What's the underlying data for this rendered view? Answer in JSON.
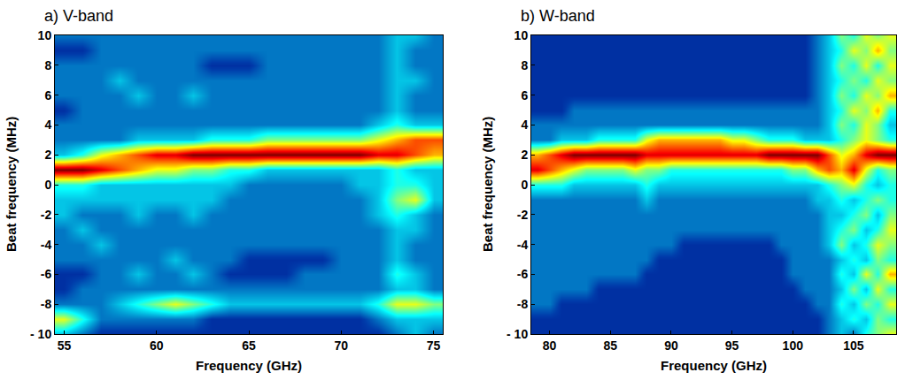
{
  "chart_data": [
    {
      "type": "heatmap",
      "title": "a) V-band",
      "x_label": "Frequency (GHz)",
      "y_label": "Beat frequency (MHz)",
      "grid": false,
      "xlim": [
        54.5,
        75.5
      ],
      "xticks": [
        55,
        60,
        65,
        70,
        75
      ],
      "ylim": [
        -10,
        10
      ],
      "yticks": [
        {
          "value": -10,
          "label": "- 10"
        },
        -8,
        -6,
        -4,
        -2,
        0,
        2,
        4,
        6,
        8,
        10
      ],
      "zlim": [
        0,
        10
      ],
      "x": [
        55,
        56,
        57,
        58,
        59,
        60,
        61,
        62,
        63,
        64,
        65,
        66,
        67,
        68,
        69,
        70,
        71,
        72,
        73,
        74,
        75
      ],
      "y": [
        -10,
        -9,
        -8,
        -7,
        -6,
        -5,
        -4,
        -3,
        -2,
        -1,
        0,
        1,
        2,
        3,
        4,
        5,
        6,
        7,
        8,
        9,
        10
      ],
      "cells": [
        [
          3,
          2,
          1,
          1,
          1,
          1,
          1,
          1,
          1,
          1,
          1,
          1,
          1,
          1,
          1,
          1,
          1,
          1,
          2,
          3,
          2
        ],
        [
          6,
          4,
          2,
          2,
          2,
          2,
          2,
          2,
          1,
          1,
          1,
          1,
          1,
          1,
          1,
          1,
          1,
          2,
          3,
          3,
          3
        ],
        [
          2,
          2,
          2,
          3,
          4,
          5,
          6,
          5,
          4,
          3,
          3,
          3,
          3,
          3,
          3,
          3,
          3,
          4,
          6,
          6,
          5
        ],
        [
          1,
          2,
          2,
          2,
          2,
          2,
          2,
          2,
          2,
          2,
          2,
          2,
          2,
          2,
          2,
          2,
          2,
          2,
          3,
          3,
          2
        ],
        [
          1,
          1,
          2,
          2,
          3,
          2,
          2,
          3,
          2,
          1,
          1,
          1,
          1,
          2,
          2,
          2,
          2,
          2,
          4,
          3,
          2
        ],
        [
          2,
          2,
          2,
          2,
          2,
          2,
          3,
          2,
          2,
          2,
          1,
          1,
          1,
          1,
          1,
          2,
          2,
          2,
          3,
          2,
          2
        ],
        [
          2,
          2,
          3,
          2,
          2,
          2,
          2,
          2,
          2,
          2,
          2,
          2,
          2,
          2,
          2,
          2,
          2,
          2,
          3,
          2,
          2
        ],
        [
          2,
          3,
          2,
          2,
          2,
          2,
          2,
          2,
          2,
          2,
          2,
          2,
          2,
          2,
          2,
          2,
          2,
          2,
          3,
          3,
          2
        ],
        [
          3,
          2,
          2,
          2,
          3,
          2,
          2,
          3,
          2,
          2,
          2,
          2,
          2,
          2,
          2,
          2,
          2,
          3,
          4,
          3,
          2
        ],
        [
          3,
          3,
          3,
          3,
          3,
          3,
          3,
          3,
          3,
          2,
          2,
          2,
          2,
          2,
          2,
          2,
          2,
          3,
          5,
          6,
          3
        ],
        [
          4,
          4,
          3,
          3,
          3,
          3,
          3,
          3,
          3,
          3,
          2,
          2,
          2,
          2,
          2,
          2,
          3,
          3,
          4,
          4,
          3
        ],
        [
          10,
          10,
          9,
          8,
          7,
          6,
          6,
          5,
          5,
          4,
          4,
          3,
          3,
          3,
          3,
          3,
          3,
          3,
          4,
          3,
          3
        ],
        [
          3,
          4,
          6,
          7,
          8,
          9,
          9,
          10,
          10,
          10,
          10,
          10,
          10,
          10,
          10,
          10,
          10,
          9,
          9,
          8,
          7
        ],
        [
          2,
          2,
          2,
          2,
          3,
          3,
          3,
          3,
          4,
          4,
          4,
          5,
          5,
          5,
          5,
          5,
          5,
          6,
          7,
          8,
          8
        ],
        [
          2,
          2,
          2,
          2,
          2,
          2,
          2,
          2,
          2,
          2,
          2,
          2,
          2,
          2,
          2,
          2,
          2,
          3,
          4,
          3,
          3
        ],
        [
          1,
          2,
          2,
          2,
          2,
          2,
          2,
          2,
          2,
          2,
          2,
          2,
          2,
          2,
          2,
          2,
          2,
          2,
          3,
          2,
          2
        ],
        [
          2,
          2,
          2,
          2,
          3,
          2,
          2,
          3,
          2,
          2,
          2,
          2,
          2,
          2,
          2,
          2,
          2,
          2,
          3,
          2,
          2
        ],
        [
          2,
          2,
          2,
          3,
          2,
          2,
          2,
          2,
          2,
          2,
          2,
          2,
          2,
          2,
          2,
          2,
          2,
          2,
          3,
          3,
          2
        ],
        [
          2,
          2,
          2,
          2,
          2,
          2,
          2,
          2,
          1,
          1,
          1,
          2,
          2,
          2,
          2,
          2,
          2,
          2,
          3,
          2,
          2
        ],
        [
          1,
          1,
          2,
          2,
          2,
          2,
          2,
          2,
          2,
          2,
          2,
          2,
          2,
          2,
          2,
          2,
          2,
          2,
          3,
          2,
          2
        ],
        [
          2,
          2,
          2,
          2,
          2,
          2,
          2,
          2,
          2,
          2,
          2,
          2,
          2,
          2,
          2,
          2,
          2,
          2,
          3,
          3,
          2
        ]
      ]
    },
    {
      "type": "heatmap",
      "title": "b) W-band",
      "x_label": "Frequency (GHz)",
      "y_label": "Beat frequency (MHz)",
      "grid": false,
      "xlim": [
        78.5,
        108.5
      ],
      "xticks": [
        80,
        85,
        90,
        95,
        100,
        105
      ],
      "ylim": [
        -10,
        10
      ],
      "yticks": [
        {
          "value": -10,
          "label": "- 10"
        },
        -8,
        -6,
        -4,
        -2,
        0,
        2,
        4,
        6,
        8,
        10
      ],
      "zlim": [
        0,
        10
      ],
      "x": [
        79,
        80,
        81,
        82,
        83,
        84,
        85,
        86,
        87,
        88,
        89,
        90,
        91,
        92,
        93,
        94,
        95,
        96,
        97,
        98,
        99,
        100,
        101,
        102,
        103,
        104,
        105,
        106,
        107,
        108
      ],
      "y": [
        -10,
        -9,
        -8,
        -7,
        -6,
        -5,
        -4,
        -3,
        -2,
        -1,
        0,
        1,
        2,
        3,
        4,
        5,
        6,
        7,
        8,
        9,
        10
      ],
      "cells": [
        [
          1,
          1,
          1,
          1,
          1,
          1,
          1,
          1,
          1,
          1,
          1,
          1,
          1,
          1,
          1,
          1,
          1,
          1,
          1,
          1,
          1,
          1,
          1,
          1,
          2,
          3,
          2,
          4,
          5,
          6
        ],
        [
          1,
          1,
          1,
          1,
          1,
          1,
          1,
          1,
          1,
          1,
          1,
          1,
          1,
          1,
          1,
          1,
          1,
          1,
          1,
          1,
          1,
          1,
          1,
          1,
          2,
          3,
          4,
          3,
          5,
          4
        ],
        [
          2,
          2,
          1,
          1,
          1,
          1,
          1,
          1,
          1,
          1,
          1,
          1,
          1,
          1,
          1,
          1,
          1,
          1,
          1,
          1,
          1,
          1,
          1,
          2,
          2,
          4,
          3,
          5,
          4,
          6
        ],
        [
          2,
          2,
          2,
          2,
          2,
          1,
          1,
          1,
          1,
          1,
          1,
          1,
          1,
          1,
          1,
          1,
          1,
          1,
          1,
          1,
          1,
          1,
          2,
          2,
          2,
          3,
          5,
          3,
          6,
          4
        ],
        [
          2,
          2,
          2,
          2,
          2,
          2,
          2,
          2,
          2,
          1,
          1,
          1,
          1,
          1,
          1,
          1,
          1,
          1,
          1,
          1,
          1,
          2,
          2,
          2,
          2,
          4,
          3,
          6,
          4,
          7
        ],
        [
          2,
          2,
          2,
          2,
          2,
          2,
          2,
          2,
          2,
          2,
          1,
          1,
          1,
          1,
          1,
          1,
          1,
          1,
          1,
          1,
          1,
          2,
          2,
          2,
          2,
          3,
          4,
          3,
          5,
          4
        ],
        [
          2,
          2,
          2,
          2,
          2,
          2,
          2,
          2,
          2,
          2,
          2,
          2,
          1,
          1,
          1,
          1,
          1,
          1,
          1,
          1,
          2,
          2,
          2,
          2,
          3,
          5,
          3,
          4,
          6,
          5
        ],
        [
          2,
          2,
          2,
          2,
          2,
          2,
          2,
          2,
          2,
          2,
          2,
          2,
          2,
          2,
          2,
          2,
          2,
          2,
          2,
          2,
          2,
          2,
          2,
          2,
          3,
          4,
          5,
          3,
          4,
          6
        ],
        [
          2,
          2,
          2,
          2,
          2,
          2,
          2,
          2,
          2,
          2,
          2,
          2,
          2,
          2,
          2,
          2,
          2,
          2,
          2,
          2,
          2,
          2,
          2,
          2,
          3,
          3,
          4,
          5,
          3,
          5
        ],
        [
          2,
          2,
          2,
          2,
          2,
          2,
          2,
          2,
          2,
          3,
          2,
          2,
          2,
          2,
          2,
          2,
          2,
          2,
          2,
          2,
          2,
          2,
          2,
          3,
          3,
          4,
          3,
          4,
          5,
          4
        ],
        [
          4,
          4,
          4,
          3,
          3,
          3,
          3,
          3,
          3,
          4,
          3,
          3,
          3,
          3,
          3,
          3,
          3,
          3,
          3,
          3,
          3,
          3,
          3,
          3,
          4,
          5,
          6,
          4,
          3,
          4
        ],
        [
          9,
          8,
          7,
          6,
          5,
          5,
          5,
          5,
          6,
          5,
          5,
          4,
          4,
          4,
          4,
          4,
          4,
          4,
          4,
          4,
          4,
          5,
          5,
          7,
          8,
          7,
          9,
          6,
          4,
          5
        ],
        [
          7,
          8,
          9,
          10,
          10,
          10,
          10,
          10,
          10,
          9,
          9,
          9,
          9,
          9,
          9,
          9,
          9,
          9,
          9,
          10,
          10,
          10,
          10,
          10,
          8,
          6,
          7,
          9,
          10,
          10
        ],
        [
          2,
          2,
          3,
          3,
          3,
          4,
          4,
          4,
          4,
          6,
          7,
          7,
          7,
          7,
          7,
          7,
          6,
          6,
          5,
          4,
          4,
          4,
          3,
          3,
          3,
          4,
          5,
          6,
          5,
          4
        ],
        [
          2,
          2,
          2,
          2,
          2,
          2,
          2,
          2,
          2,
          2,
          2,
          2,
          2,
          2,
          2,
          2,
          2,
          2,
          2,
          2,
          2,
          2,
          2,
          2,
          3,
          5,
          4,
          6,
          5,
          3
        ],
        [
          1,
          1,
          1,
          2,
          2,
          2,
          2,
          2,
          2,
          2,
          2,
          2,
          2,
          2,
          2,
          2,
          2,
          2,
          2,
          2,
          2,
          2,
          2,
          2,
          3,
          4,
          6,
          5,
          7,
          4
        ],
        [
          1,
          1,
          1,
          1,
          1,
          1,
          1,
          1,
          1,
          1,
          1,
          1,
          1,
          1,
          1,
          1,
          1,
          1,
          1,
          1,
          1,
          1,
          1,
          2,
          3,
          5,
          4,
          6,
          5,
          7
        ],
        [
          1,
          1,
          1,
          1,
          1,
          1,
          1,
          1,
          1,
          1,
          1,
          1,
          1,
          1,
          1,
          1,
          1,
          1,
          1,
          1,
          1,
          1,
          1,
          2,
          3,
          4,
          5,
          4,
          6,
          5
        ],
        [
          1,
          1,
          1,
          1,
          1,
          1,
          1,
          1,
          1,
          1,
          1,
          1,
          1,
          1,
          1,
          1,
          1,
          1,
          1,
          1,
          1,
          1,
          1,
          2,
          3,
          5,
          4,
          6,
          4,
          6
        ],
        [
          1,
          1,
          1,
          1,
          1,
          1,
          1,
          1,
          1,
          1,
          1,
          1,
          1,
          1,
          1,
          1,
          1,
          1,
          1,
          1,
          1,
          1,
          1,
          2,
          3,
          4,
          6,
          5,
          7,
          5
        ],
        [
          1,
          1,
          1,
          1,
          1,
          1,
          1,
          1,
          1,
          1,
          1,
          1,
          1,
          1,
          1,
          1,
          1,
          1,
          1,
          1,
          1,
          1,
          1,
          2,
          3,
          5,
          4,
          6,
          5,
          6
        ]
      ]
    }
  ]
}
